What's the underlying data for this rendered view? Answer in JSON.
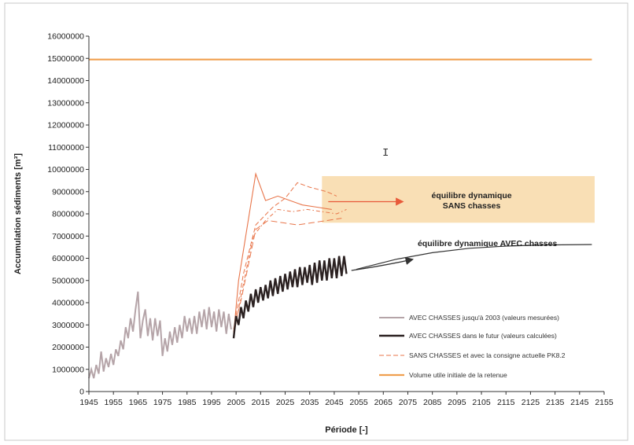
{
  "chart_data": {
    "type": "line",
    "title": "",
    "xlabel": "Période [-]",
    "ylabel": "Accumulation sédiments [m³]",
    "xlim": [
      1945,
      2155
    ],
    "ylim": [
      0,
      16000000
    ],
    "xticks": [
      1945,
      1955,
      1965,
      1975,
      1985,
      1995,
      2005,
      2015,
      2025,
      2035,
      2045,
      2055,
      2065,
      2075,
      2085,
      2095,
      2105,
      2115,
      2125,
      2135,
      2145,
      2155
    ],
    "yticks": [
      0,
      1000000,
      2000000,
      3000000,
      4000000,
      5000000,
      6000000,
      7000000,
      8000000,
      9000000,
      10000000,
      11000000,
      12000000,
      13000000,
      14000000,
      15000000,
      16000000
    ],
    "grid": false,
    "legend_position": "bottom-right",
    "colors": {
      "measured": "#b5a4a8",
      "future": "#2b2121",
      "sans": "#e8754a",
      "volume": "#f0a050",
      "band": "#f8d9a8",
      "annotation_orange": "#e85a3a",
      "annotation_dark": "#333333"
    },
    "series": [
      {
        "name": "AVEC CHASSES jusqu'à 2003 (valeurs mesurées)",
        "style": "solid",
        "x": [
          1945,
          1946,
          1947,
          1948,
          1949,
          1950,
          1951,
          1952,
          1953,
          1954,
          1955,
          1956,
          1957,
          1958,
          1959,
          1960,
          1961,
          1962,
          1963,
          1964,
          1965,
          1966,
          1967,
          1968,
          1969,
          1970,
          1971,
          1972,
          1973,
          1974,
          1975,
          1976,
          1977,
          1978,
          1979,
          1980,
          1981,
          1982,
          1983,
          1984,
          1985,
          1986,
          1987,
          1988,
          1989,
          1990,
          1991,
          1992,
          1993,
          1994,
          1995,
          1996,
          1997,
          1998,
          1999,
          2000,
          2001,
          2002,
          2003
        ],
        "y": [
          600000,
          1000000,
          600000,
          1200000,
          800000,
          1800000,
          900000,
          1500000,
          1100000,
          1700000,
          1200000,
          1900000,
          1600000,
          2300000,
          1900000,
          2900000,
          2400000,
          3300000,
          2700000,
          3700000,
          4500000,
          2400000,
          3200000,
          3700000,
          2500000,
          3300000,
          2300000,
          3300000,
          2500000,
          3200000,
          1600000,
          2400000,
          1800000,
          2700000,
          2100000,
          2900000,
          2200000,
          3000000,
          2400000,
          3400000,
          2700000,
          3300000,
          2600000,
          3400000,
          2600000,
          3600000,
          2900000,
          3700000,
          2800000,
          3800000,
          2900000,
          3600000,
          2700000,
          3700000,
          2900000,
          3600000,
          2600000,
          3500000,
          2800000
        ]
      },
      {
        "name": "AVEC CHASSES dans le futur (valeurs calculées)",
        "style": "solid",
        "x": [
          2004,
          2005,
          2006,
          2007,
          2008,
          2009,
          2010,
          2011,
          2012,
          2013,
          2014,
          2015,
          2016,
          2017,
          2018,
          2019,
          2020,
          2021,
          2022,
          2023,
          2024,
          2025,
          2026,
          2027,
          2028,
          2029,
          2030,
          2031,
          2032,
          2033,
          2034,
          2035,
          2036,
          2037,
          2038,
          2039,
          2040,
          2041,
          2042,
          2043,
          2044,
          2045,
          2046,
          2047,
          2048,
          2049,
          2050
        ],
        "y": [
          2400000,
          3400000,
          3000000,
          3800000,
          3300000,
          4100000,
          3600000,
          4400000,
          3800000,
          4600000,
          4000000,
          4700000,
          4100000,
          4800000,
          4200000,
          5000000,
          4300000,
          5100000,
          4400000,
          5200000,
          4500000,
          5300000,
          4600000,
          5400000,
          4700000,
          5500000,
          4700000,
          5600000,
          4800000,
          5600000,
          4900000,
          5700000,
          4800000,
          5800000,
          4900000,
          5900000,
          5000000,
          5900000,
          5000000,
          6000000,
          5100000,
          6000000,
          5100000,
          6100000,
          5200000,
          6100000,
          5300000
        ]
      },
      {
        "name": "SANS CHASSES et avec la consigne actuelle PK8.2",
        "style": "dashed",
        "variants": [
          {
            "x": [
              2004,
              2006,
              2013,
              2017,
              2022,
              2027,
              2032,
              2038,
              2044
            ],
            "y": [
              2600000,
              5000000,
              9800000,
              8600000,
              8800000,
              8600000,
              8400000,
              8300000,
              8200000
            ]
          },
          {
            "x": [
              2004,
              2008,
              2013,
              2020,
              2025,
              2030,
              2035,
              2042,
              2046
            ],
            "y": [
              2800000,
              5300000,
              7500000,
              8300000,
              8700000,
              9400000,
              9200000,
              9000000,
              8800000
            ]
          },
          {
            "x": [
              2004,
              2007,
              2012,
              2017,
              2022,
              2028,
              2034,
              2040,
              2046,
              2050
            ],
            "y": [
              2500000,
              4300000,
              7000000,
              7700000,
              8200000,
              8100000,
              8200000,
              8100000,
              8000000,
              8200000
            ]
          },
          {
            "x": [
              2004,
              2007,
              2013,
              2018,
              2024,
              2030,
              2036,
              2042,
              2048
            ],
            "y": [
              2700000,
              4100000,
              7300000,
              7700000,
              7600000,
              7500000,
              7600000,
              7700000,
              7800000
            ]
          }
        ]
      },
      {
        "name": "Volume utile initiale de la retenue",
        "style": "solid",
        "x": [
          1945,
          2150
        ],
        "y": [
          14950000,
          14950000
        ]
      }
    ],
    "annotations": {
      "sans": {
        "line1": "équilibre dynamique",
        "line2": "SANS chasses"
      },
      "avec": "équilibre dynamique AVEC chasses"
    },
    "equilibrium_band": {
      "x": [
        2040,
        2155
      ],
      "y": [
        7600000,
        9700000
      ]
    },
    "avec_trend": {
      "x": [
        2054,
        2070,
        2085,
        2100,
        2115,
        2130,
        2150
      ],
      "y": [
        5500000,
        5950000,
        6250000,
        6450000,
        6550000,
        6600000,
        6620000
      ]
    }
  }
}
